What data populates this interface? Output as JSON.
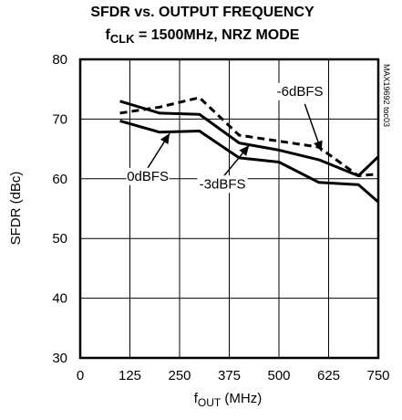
{
  "chart_data": {
    "type": "line",
    "title_line1": "SFDR vs. OUTPUT FREQUENCY",
    "title_line2_prefix": "f",
    "title_line2_sub": "CLK",
    "title_line2_rest": " = 1500MHz, NRZ MODE",
    "xlabel_prefix": "f",
    "xlabel_sub": "OUT",
    "xlabel_rest": " (MHz)",
    "ylabel": "SFDR (dBc)",
    "xlim": [
      0,
      750
    ],
    "ylim": [
      30,
      80
    ],
    "xticks": [
      "0",
      "125",
      "250",
      "375",
      "500",
      "625",
      "750"
    ],
    "yticks": [
      "30",
      "40",
      "50",
      "60",
      "70",
      "80"
    ],
    "grid": true,
    "figure_code": "MAX19692 toc03",
    "series": [
      {
        "name": "0dBFS",
        "style": "solid",
        "points": [
          [
            100,
            73.0
          ],
          [
            200,
            71.0
          ],
          [
            300,
            70.8
          ],
          [
            400,
            66.0
          ],
          [
            500,
            64.8
          ],
          [
            600,
            63.2
          ],
          [
            700,
            60.5
          ],
          [
            750,
            63.7
          ]
        ]
      },
      {
        "name": "-3dBFS",
        "style": "solid",
        "points": [
          [
            100,
            69.7
          ],
          [
            200,
            67.8
          ],
          [
            300,
            68.0
          ],
          [
            400,
            63.5
          ],
          [
            500,
            62.8
          ],
          [
            600,
            59.4
          ],
          [
            700,
            59.0
          ],
          [
            750,
            56.1
          ]
        ]
      },
      {
        "name": "-6dBFS",
        "style": "dashed",
        "points": [
          [
            100,
            71.0
          ],
          [
            200,
            72.0
          ],
          [
            300,
            73.6
          ],
          [
            400,
            67.3
          ],
          [
            500,
            66.3
          ],
          [
            600,
            65.3
          ],
          [
            700,
            60.5
          ],
          [
            750,
            60.8
          ]
        ]
      }
    ],
    "annotations": [
      {
        "text": "0dBFS",
        "series": "0dBFS",
        "label_at": [
          170,
          59.7
        ],
        "arrow_from": [
          165,
          61.3
        ],
        "arrow_to": [
          225,
          67.6
        ]
      },
      {
        "text": "-3dBFS",
        "series": "-3dBFS",
        "label_at": [
          358,
          58.4
        ],
        "arrow_from": [
          362,
          60.5
        ],
        "arrow_to": [
          425,
          65.6
        ]
      },
      {
        "text": "-6dBFS",
        "series": "-6dBFS",
        "label_at": [
          553,
          73.9
        ],
        "arrow_from": [
          565,
          72.5
        ],
        "arrow_to": [
          607,
          64.6
        ]
      }
    ]
  }
}
